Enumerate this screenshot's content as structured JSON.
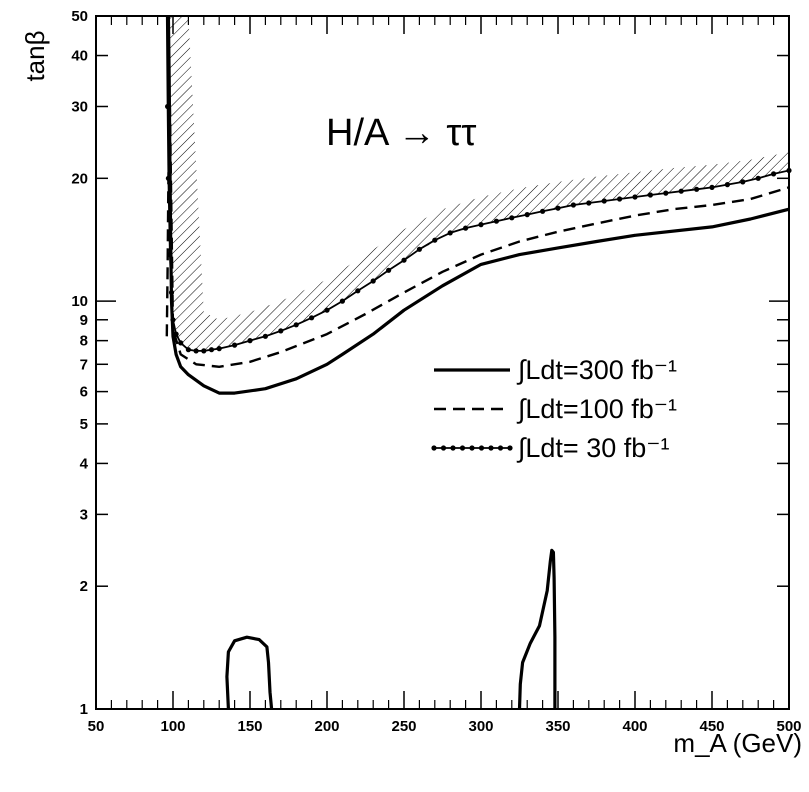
{
  "chart_data": {
    "type": "line",
    "xlabel": "m_A (GeV)",
    "ylabel": "tanβ",
    "annotation": "H/A → ττ",
    "xlim": [
      50,
      500
    ],
    "ylim": [
      1,
      50
    ],
    "yscale": "log",
    "x_ticks": [
      50,
      100,
      150,
      200,
      250,
      300,
      350,
      400,
      450,
      500
    ],
    "y_ticks": [
      1,
      2,
      3,
      4,
      5,
      6,
      7,
      8,
      9,
      10,
      20,
      30,
      40,
      50
    ],
    "legend_position": "right-middle",
    "series": [
      {
        "name": "∫Ldt=300 fb⁻¹",
        "style": "solid",
        "x": [
          97,
          97.5,
          98,
          98.5,
          99,
          100,
          102,
          105,
          110,
          120,
          130,
          140,
          160,
          180,
          200,
          210,
          230,
          250,
          275,
          300,
          325,
          350,
          375,
          400,
          450,
          475,
          500
        ],
        "y": [
          50,
          35,
          22,
          14,
          10,
          8.2,
          7.4,
          6.9,
          6.6,
          6.2,
          5.95,
          5.95,
          6.1,
          6.45,
          7.0,
          7.4,
          8.3,
          9.5,
          10.9,
          12.3,
          13.0,
          13.5,
          14.0,
          14.5,
          15.2,
          15.9,
          16.8
        ]
      },
      {
        "name": "∫Ldt=100 fb⁻¹",
        "style": "dashed",
        "x": [
          96,
          96.5,
          97,
          98,
          100,
          105,
          115,
          130,
          150,
          170,
          200,
          225,
          250,
          275,
          300,
          325,
          350,
          375,
          400,
          425,
          450,
          475,
          500
        ],
        "y": [
          8.2,
          12,
          20,
          30,
          8.5,
          7.4,
          7.0,
          6.9,
          7.1,
          7.5,
          8.3,
          9.3,
          10.5,
          11.8,
          13.0,
          14.0,
          14.8,
          15.5,
          16.2,
          16.8,
          17.2,
          17.8,
          19.0
        ]
      },
      {
        "name": "∫Ldt= 30 fb⁻¹",
        "style": "dotted-line",
        "x": [
          96,
          96.5,
          97,
          98,
          99,
          100,
          102,
          105,
          110,
          115,
          120,
          125,
          130,
          140,
          150,
          160,
          170,
          180,
          190,
          200,
          210,
          220,
          230,
          240,
          250,
          260,
          270,
          280,
          290,
          300,
          310,
          320,
          330,
          340,
          350,
          360,
          370,
          380,
          390,
          400,
          410,
          420,
          430,
          440,
          450,
          460,
          470,
          480,
          490,
          500
        ],
        "y": [
          50,
          30,
          20,
          13,
          10.5,
          9.0,
          8.3,
          7.9,
          7.6,
          7.55,
          7.55,
          7.6,
          7.65,
          7.8,
          8.0,
          8.2,
          8.45,
          8.75,
          9.1,
          9.5,
          10.0,
          10.6,
          11.2,
          11.9,
          12.6,
          13.4,
          14.1,
          14.7,
          15.1,
          15.4,
          15.7,
          16.0,
          16.3,
          16.6,
          16.9,
          17.2,
          17.4,
          17.6,
          17.8,
          18.0,
          18.2,
          18.4,
          18.6,
          18.8,
          19.0,
          19.3,
          19.6,
          20.0,
          20.5,
          20.9
        ]
      }
    ],
    "contours_300": [
      {
        "x": [
          136,
          135,
          136,
          140,
          148,
          156,
          161,
          162,
          163,
          164
        ],
        "y": [
          1.0,
          1.2,
          1.38,
          1.47,
          1.5,
          1.48,
          1.42,
          1.3,
          1.1,
          1.0
        ]
      },
      {
        "x": [
          325,
          325.5,
          327,
          332,
          338,
          343,
          345,
          346,
          347,
          347.5,
          348,
          348
        ],
        "y": [
          1.0,
          1.15,
          1.3,
          1.45,
          1.6,
          1.95,
          2.3,
          2.45,
          2.42,
          2.1,
          1.5,
          1.0
        ]
      }
    ],
    "hatched_band": {
      "x": [
        96,
        98,
        100,
        105,
        110,
        120,
        130,
        150,
        170,
        200,
        225,
        250,
        275,
        300,
        325,
        350,
        375,
        400,
        425,
        450,
        475,
        490,
        500
      ],
      "y_low": [
        50,
        12,
        9.0,
        7.9,
        7.6,
        7.55,
        7.65,
        8.0,
        8.45,
        9.5,
        10.9,
        12.6,
        14.4,
        15.4,
        16.1,
        16.9,
        17.5,
        18.0,
        18.5,
        19.0,
        19.8,
        20.5,
        20.9
      ],
      "y_high": [
        50,
        50,
        50,
        50,
        50,
        9.4,
        9.0,
        9.4,
        10.0,
        11.3,
        13.0,
        15.0,
        16.8,
        18.0,
        18.9,
        19.6,
        20.2,
        20.7,
        21.2,
        21.6,
        22.2,
        22.8,
        23.2
      ]
    }
  }
}
